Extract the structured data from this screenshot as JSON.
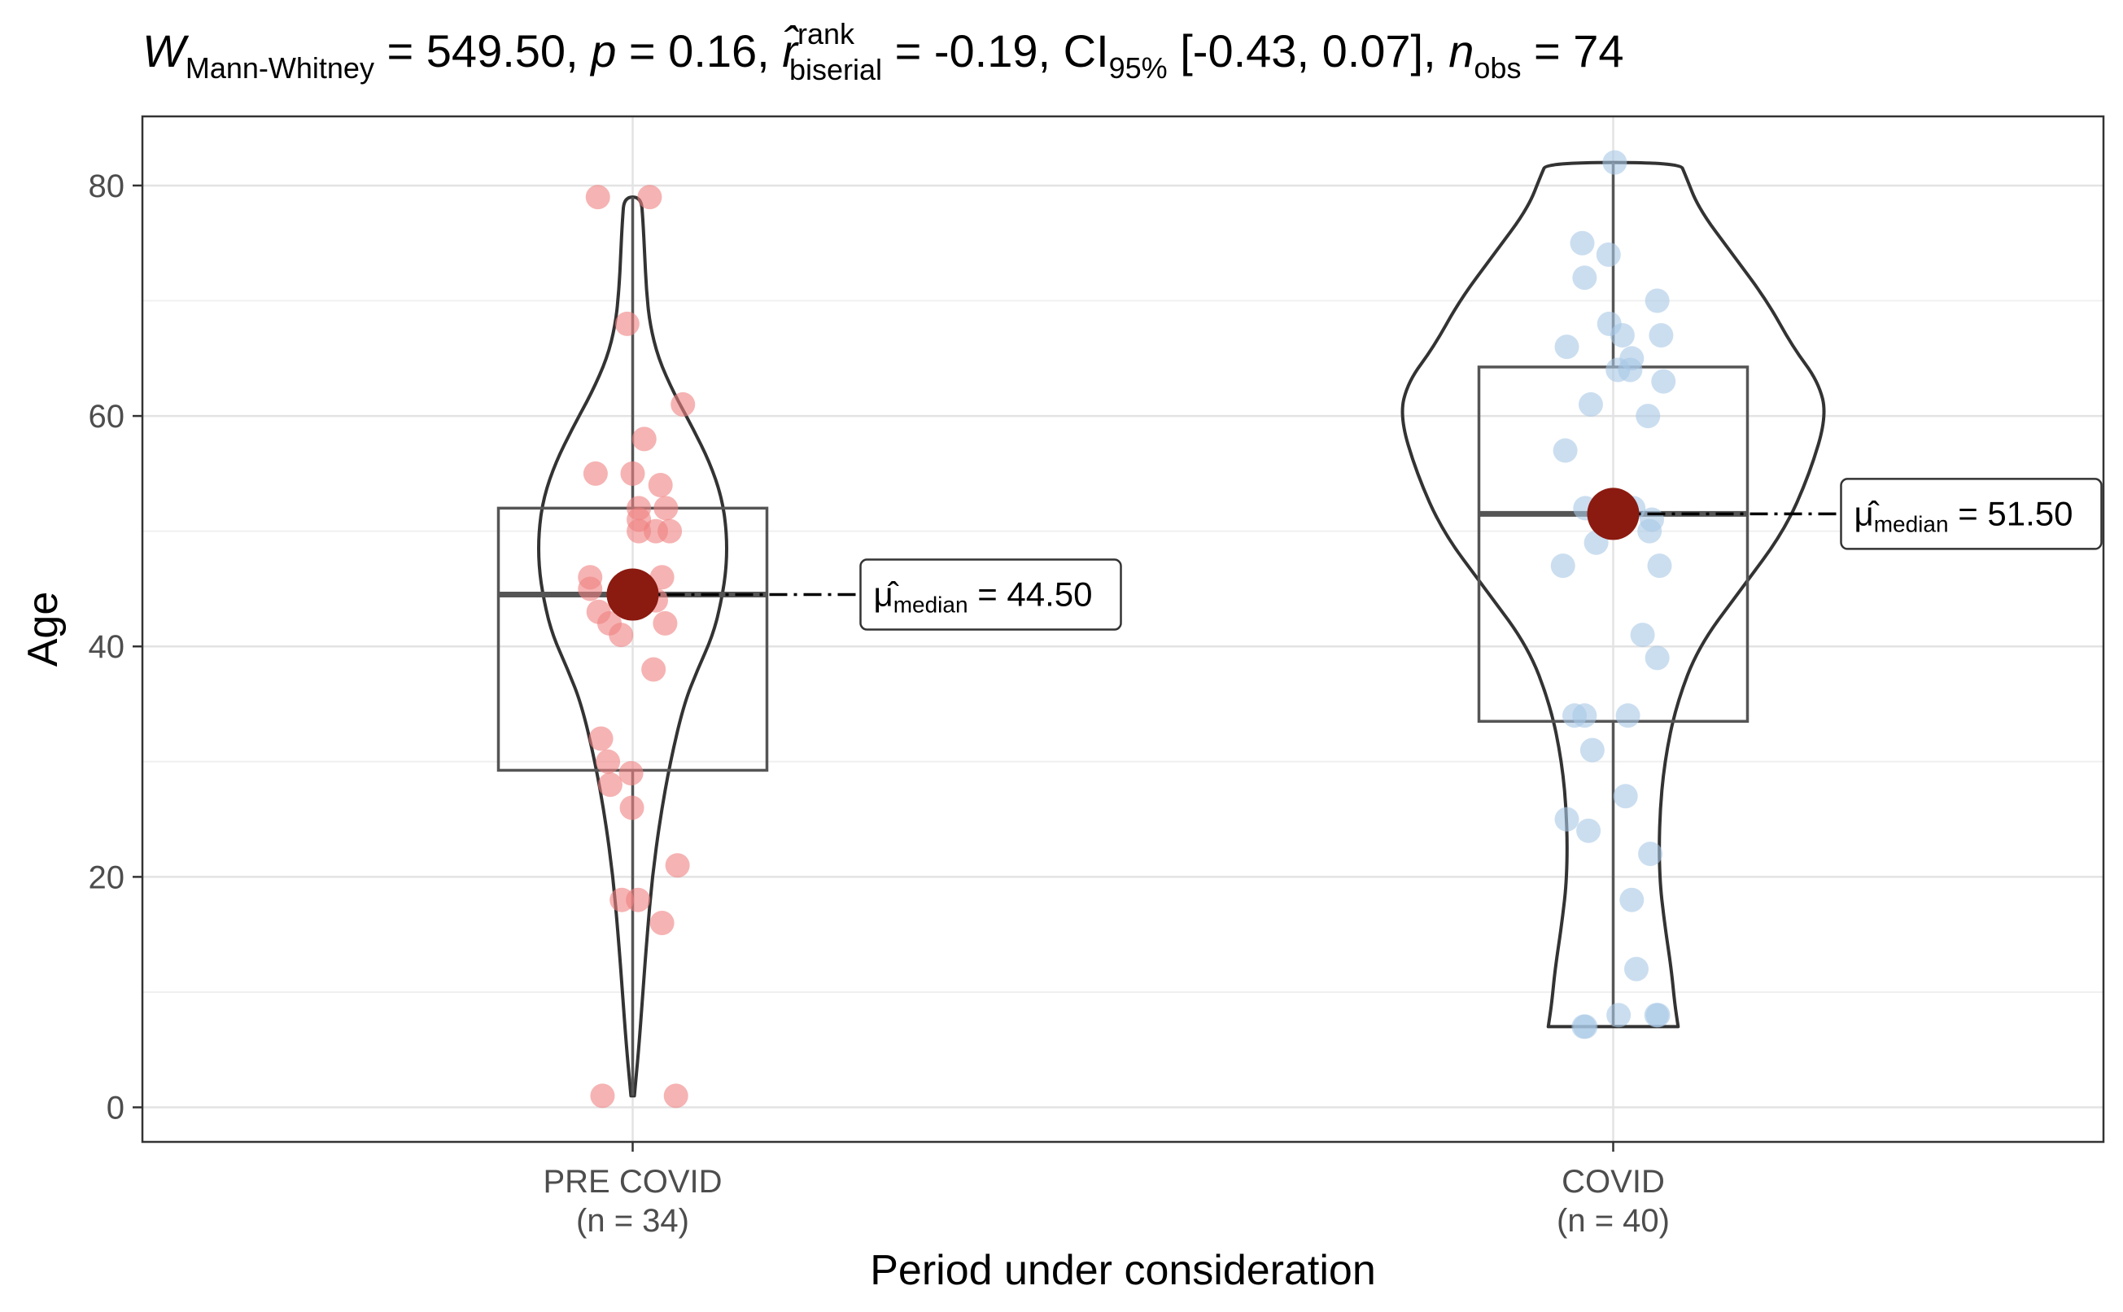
{
  "chart_data": {
    "type": "violin-box-scatter",
    "title": {
      "stat_symbol": "W",
      "stat_subscript": "Mann-Whitney",
      "stat_value": "549.50",
      "p_symbol": "p",
      "p_value": "0.16",
      "effect_symbol": "r̂",
      "effect_superscript": "rank",
      "effect_subscript": "biserial",
      "effect_value": "-0.19",
      "ci_label": "CI",
      "ci_subscript": "95%",
      "ci_value": "[-0.43, 0.07]",
      "n_symbol": "n",
      "n_subscript": "obs",
      "n_value": "74"
    },
    "xlabel": "Period under consideration",
    "ylabel": "Age",
    "ylim": [
      -3,
      86
    ],
    "yticks": [
      0,
      20,
      40,
      60,
      80
    ],
    "grid": true,
    "median_label_symbol": "μ̂",
    "median_label_subscript": "median",
    "groups": [
      {
        "name": "PRE COVID",
        "n_label": "(n = 34)",
        "color": "#f08080",
        "median": 44.5,
        "median_text": "44.50",
        "box": {
          "q1": 29.25,
          "median": 44.5,
          "q3": 52,
          "min": 1,
          "max": 79
        },
        "violin": [
          [
            1,
            0.01
          ],
          [
            5,
            0.035
          ],
          [
            10,
            0.06
          ],
          [
            15,
            0.085
          ],
          [
            20,
            0.115
          ],
          [
            25,
            0.16
          ],
          [
            30,
            0.22
          ],
          [
            35,
            0.3
          ],
          [
            38,
            0.38
          ],
          [
            41,
            0.47
          ],
          [
            44,
            0.52
          ],
          [
            47,
            0.55
          ],
          [
            50,
            0.55
          ],
          [
            53,
            0.52
          ],
          [
            56,
            0.45
          ],
          [
            59,
            0.35
          ],
          [
            62,
            0.24
          ],
          [
            65,
            0.15
          ],
          [
            68,
            0.1
          ],
          [
            71,
            0.08
          ],
          [
            74,
            0.07
          ],
          [
            77,
            0.06
          ],
          [
            79,
            0.05
          ]
        ],
        "points": [
          {
            "y": 79,
            "j": -0.45
          },
          {
            "y": 79,
            "j": 0.22
          },
          {
            "y": 68,
            "j": -0.07
          },
          {
            "y": 61,
            "j": 0.65
          },
          {
            "y": 58,
            "j": 0.15
          },
          {
            "y": 55,
            "j": -0.48
          },
          {
            "y": 55,
            "j": 0.0
          },
          {
            "y": 54,
            "j": 0.36
          },
          {
            "y": 52,
            "j": 0.08
          },
          {
            "y": 52,
            "j": 0.43
          },
          {
            "y": 51,
            "j": 0.08
          },
          {
            "y": 50,
            "j": 0.08
          },
          {
            "y": 50,
            "j": 0.3
          },
          {
            "y": 50,
            "j": 0.48
          },
          {
            "y": 46,
            "j": -0.55
          },
          {
            "y": 46,
            "j": 0.38
          },
          {
            "y": 45,
            "j": -0.55
          },
          {
            "y": 44,
            "j": 0.3
          },
          {
            "y": 43,
            "j": -0.44
          },
          {
            "y": 42,
            "j": -0.3
          },
          {
            "y": 42,
            "j": 0.42
          },
          {
            "y": 41,
            "j": -0.15
          },
          {
            "y": 38,
            "j": 0.27
          },
          {
            "y": 32,
            "j": -0.41
          },
          {
            "y": 30,
            "j": -0.32
          },
          {
            "y": 29,
            "j": -0.02
          },
          {
            "y": 28,
            "j": -0.29
          },
          {
            "y": 26,
            "j": -0.01
          },
          {
            "y": 21,
            "j": 0.58
          },
          {
            "y": 18,
            "j": -0.14
          },
          {
            "y": 18,
            "j": 0.07
          },
          {
            "y": 16,
            "j": 0.38
          },
          {
            "y": 1,
            "j": -0.39
          },
          {
            "y": 1,
            "j": 0.56
          }
        ]
      },
      {
        "name": "COVID",
        "n_label": "(n = 40)",
        "color": "#a9c8e6",
        "median": 51.5,
        "median_text": "51.50",
        "box": {
          "q1": 33.5,
          "median": 51.5,
          "q3": 64.25,
          "min": 7,
          "max": 82
        },
        "violin": [
          [
            7,
            0.38
          ],
          [
            9,
            0.36
          ],
          [
            12,
            0.34
          ],
          [
            16,
            0.3
          ],
          [
            20,
            0.27
          ],
          [
            25,
            0.27
          ],
          [
            30,
            0.3
          ],
          [
            35,
            0.37
          ],
          [
            40,
            0.5
          ],
          [
            45,
            0.75
          ],
          [
            50,
            1.0
          ],
          [
            55,
            1.15
          ],
          [
            60,
            1.25
          ],
          [
            63,
            1.2
          ],
          [
            66,
            1.05
          ],
          [
            70,
            0.9
          ],
          [
            74,
            0.7
          ],
          [
            78,
            0.5
          ],
          [
            81,
            0.42
          ],
          [
            82,
            0.39
          ]
        ],
        "points": [
          {
            "y": 82,
            "j": 0.02
          },
          {
            "y": 75,
            "j": -0.4
          },
          {
            "y": 74,
            "j": -0.06
          },
          {
            "y": 72,
            "j": -0.37
          },
          {
            "y": 70,
            "j": 0.57
          },
          {
            "y": 68,
            "j": -0.05
          },
          {
            "y": 67,
            "j": 0.12
          },
          {
            "y": 67,
            "j": 0.62
          },
          {
            "y": 66,
            "j": -0.6
          },
          {
            "y": 65,
            "j": 0.24
          },
          {
            "y": 64,
            "j": 0.06
          },
          {
            "y": 64,
            "j": 0.22
          },
          {
            "y": 63,
            "j": 0.65
          },
          {
            "y": 61,
            "j": -0.29
          },
          {
            "y": 60,
            "j": 0.45
          },
          {
            "y": 57,
            "j": -0.62
          },
          {
            "y": 52,
            "j": -0.36
          },
          {
            "y": 52,
            "j": 0.26
          },
          {
            "y": 51,
            "j": 0.5
          },
          {
            "y": 50,
            "j": 0.47
          },
          {
            "y": 49,
            "j": -0.22
          },
          {
            "y": 47,
            "j": -0.65
          },
          {
            "y": 47,
            "j": 0.6
          },
          {
            "y": 41,
            "j": 0.38
          },
          {
            "y": 39,
            "j": 0.57
          },
          {
            "y": 34,
            "j": -0.5
          },
          {
            "y": 34,
            "j": -0.37
          },
          {
            "y": 34,
            "j": 0.19
          },
          {
            "y": 31,
            "j": -0.27
          },
          {
            "y": 27,
            "j": 0.16
          },
          {
            "y": 25,
            "j": -0.6
          },
          {
            "y": 24,
            "j": -0.32
          },
          {
            "y": 22,
            "j": 0.48
          },
          {
            "y": 18,
            "j": 0.24
          },
          {
            "y": 12,
            "j": 0.3
          },
          {
            "y": 8,
            "j": 0.07
          },
          {
            "y": 8,
            "j": 0.56
          },
          {
            "y": 8,
            "j": 0.58
          },
          {
            "y": 7,
            "j": -0.38
          },
          {
            "y": 7,
            "j": -0.36
          }
        ]
      }
    ]
  }
}
